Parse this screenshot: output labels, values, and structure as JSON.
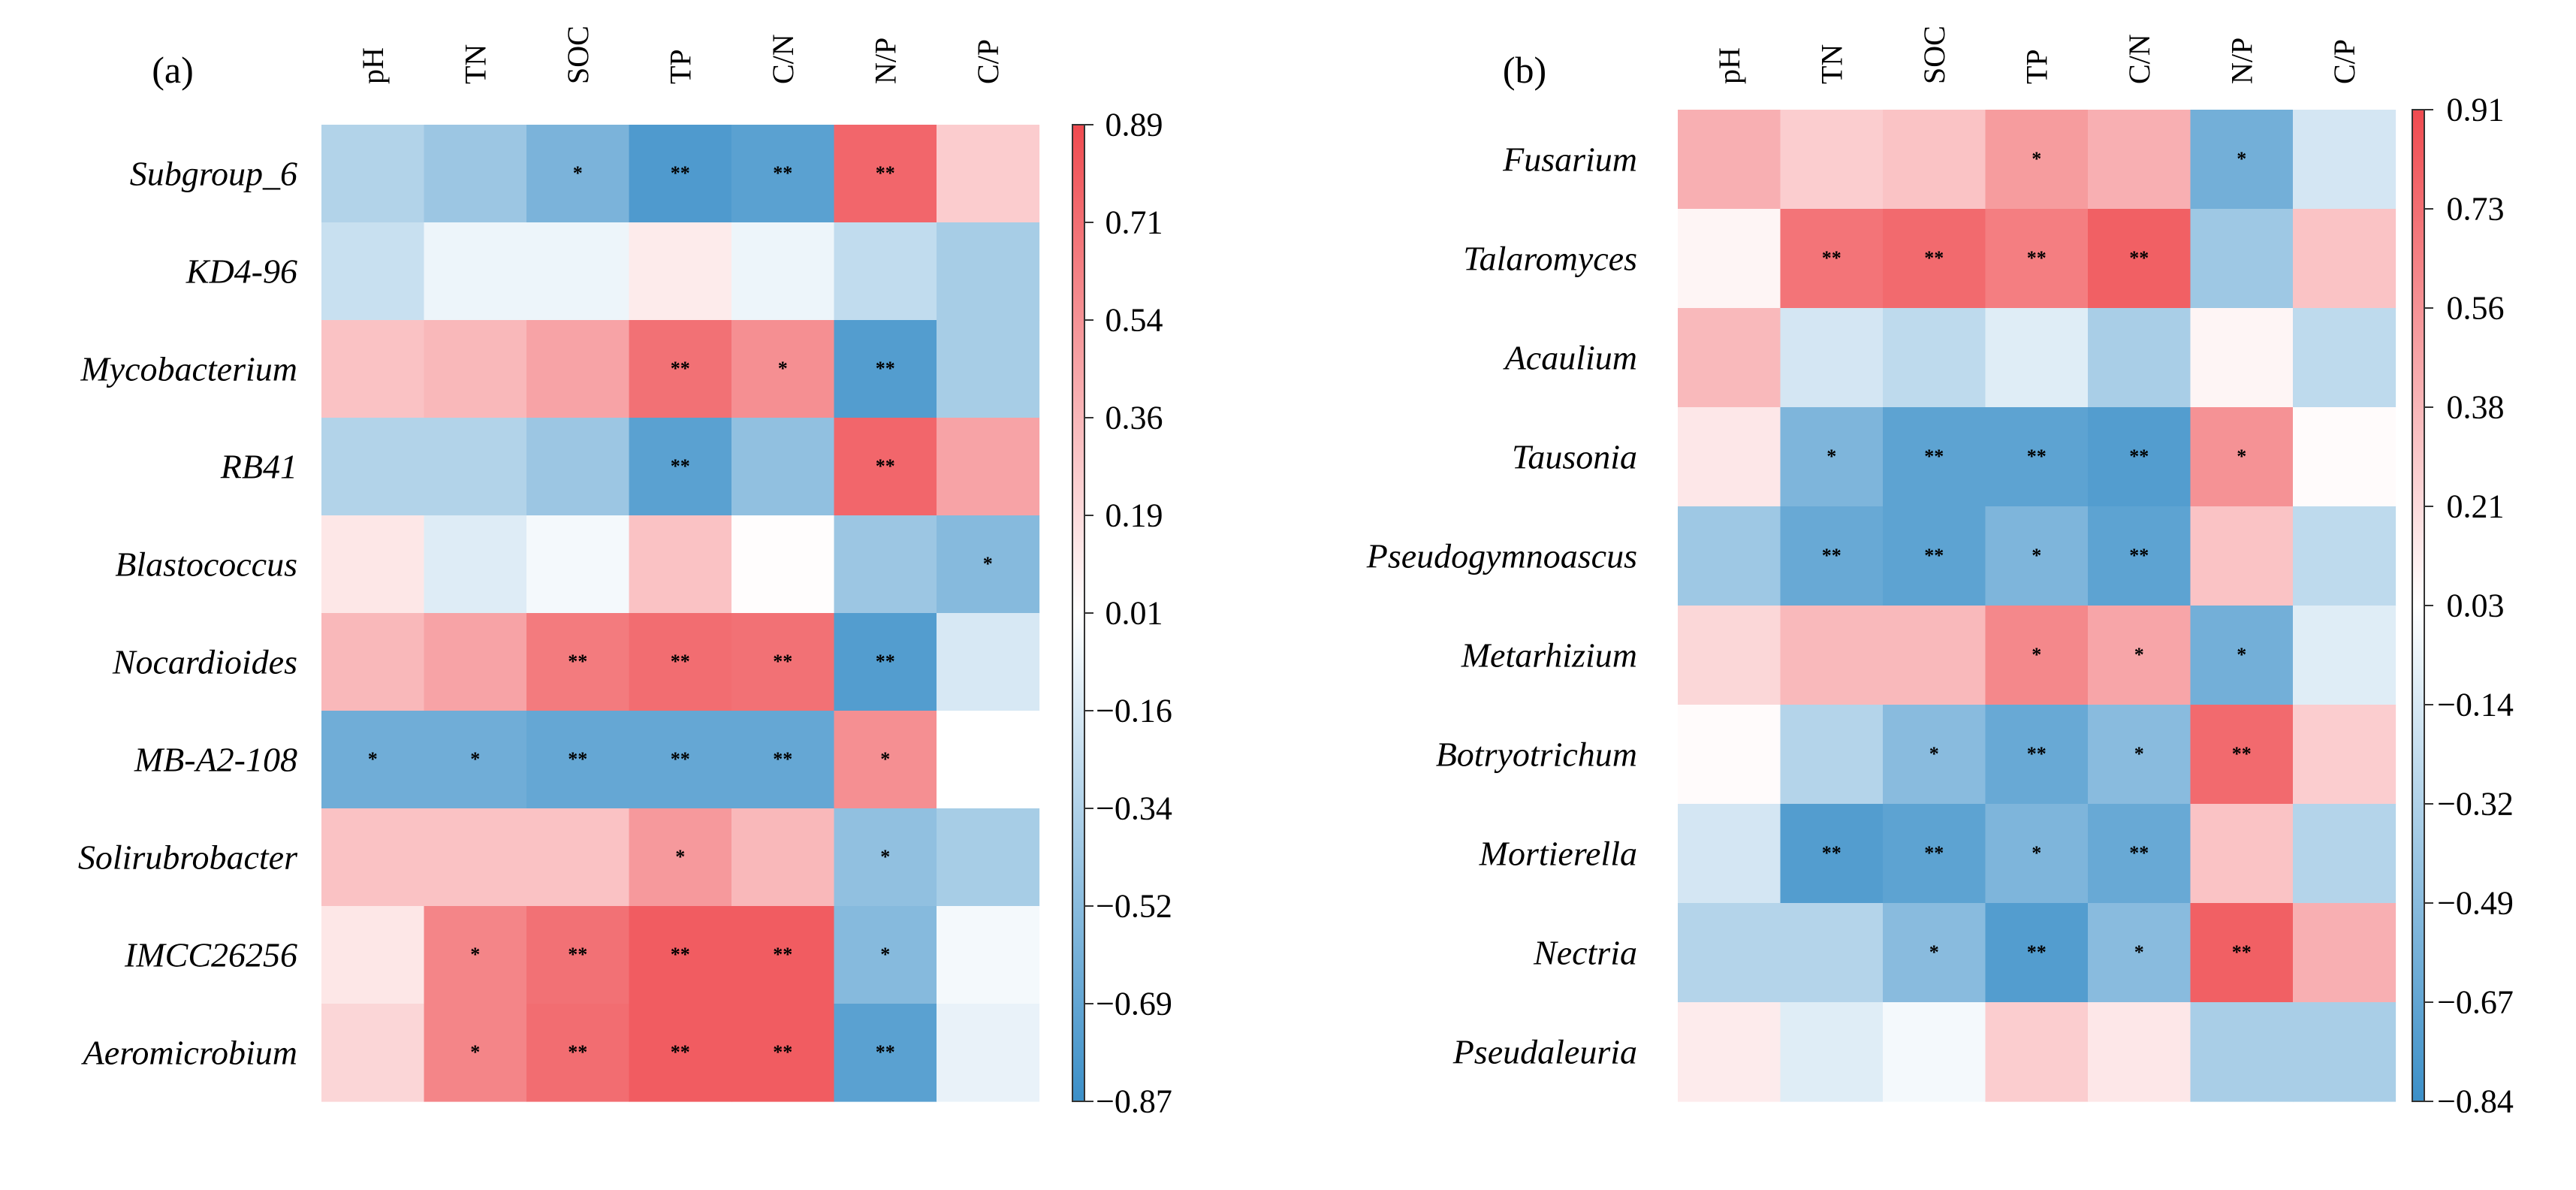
{
  "chart_data": [
    {
      "type": "heatmap",
      "panel_label": "(a)",
      "columns": [
        "pH",
        "TN",
        "SOC",
        "TP",
        "C/N",
        "N/P",
        "C/P"
      ],
      "rows": [
        "Subgroup_6",
        "KD4-96",
        "Mycobacterium",
        "RB41",
        "Blastococcus",
        "Nocardioides",
        "MB-A2-108",
        "Solirubrobacter",
        "IMCC26256",
        "Aeromicrobium"
      ],
      "values": [
        [
          -0.35,
          -0.45,
          -0.6,
          -0.8,
          -0.75,
          0.75,
          0.25
        ],
        [
          -0.25,
          -0.08,
          -0.08,
          0.1,
          -0.08,
          -0.28,
          -0.4
        ],
        [
          0.3,
          0.35,
          0.45,
          0.7,
          0.55,
          -0.78,
          -0.4
        ],
        [
          -0.35,
          -0.35,
          -0.45,
          -0.75,
          -0.5,
          0.75,
          0.45
        ],
        [
          0.12,
          -0.15,
          -0.05,
          0.3,
          0.01,
          -0.45,
          -0.55
        ],
        [
          0.35,
          0.45,
          0.65,
          0.72,
          0.7,
          -0.78,
          -0.18
        ],
        [
          -0.65,
          -0.65,
          -0.7,
          -0.7,
          -0.7,
          0.55,
          0.0
        ],
        [
          0.3,
          0.3,
          0.3,
          0.5,
          0.35,
          -0.5,
          -0.4
        ],
        [
          0.12,
          0.6,
          0.7,
          0.8,
          0.8,
          -0.55,
          -0.05
        ],
        [
          0.2,
          0.6,
          0.72,
          0.8,
          0.8,
          -0.75,
          -0.1
        ]
      ],
      "significance": [
        [
          "",
          "",
          "*",
          "**",
          "**",
          "**",
          ""
        ],
        [
          "",
          "",
          "",
          "",
          "",
          "",
          ""
        ],
        [
          "",
          "",
          "",
          "**",
          "*",
          "**",
          ""
        ],
        [
          "",
          "",
          "",
          "**",
          "",
          "**",
          ""
        ],
        [
          "",
          "",
          "",
          "",
          "",
          "",
          "*"
        ],
        [
          "",
          "",
          "**",
          "**",
          "**",
          "**",
          ""
        ],
        [
          "*",
          "*",
          "**",
          "**",
          "**",
          "*",
          ""
        ],
        [
          "",
          "",
          "",
          "*",
          "",
          "*",
          ""
        ],
        [
          "",
          "*",
          "**",
          "**",
          "**",
          "*",
          ""
        ],
        [
          "",
          "*",
          "**",
          "**",
          "**",
          "**",
          ""
        ]
      ],
      "colorbar": {
        "min": -0.87,
        "max": 0.89,
        "ticks": [
          "0.89",
          "0.71",
          "0.54",
          "0.36",
          "0.19",
          "0.01",
          "−0.16",
          "−0.34",
          "−0.52",
          "−0.69",
          "−0.87"
        ]
      }
    },
    {
      "type": "heatmap",
      "panel_label": "(b)",
      "columns": [
        "pH",
        "TN",
        "SOC",
        "TP",
        "C/N",
        "N/P",
        "C/P"
      ],
      "rows": [
        "Fusarium",
        "Talaromyces",
        "Acaulium",
        "Tausonia",
        "Pseudogymnoascus",
        "Metarhizium",
        "Botryotrichum",
        "Mortierella",
        "Nectria",
        "Pseudaleuria"
      ],
      "values": [
        [
          0.4,
          0.25,
          0.3,
          0.5,
          0.4,
          -0.65,
          -0.2
        ],
        [
          0.05,
          0.7,
          0.75,
          0.65,
          0.8,
          -0.45,
          0.3
        ],
        [
          0.35,
          -0.2,
          -0.3,
          -0.15,
          -0.4,
          0.05,
          -0.3
        ],
        [
          0.12,
          -0.6,
          -0.75,
          -0.75,
          -0.8,
          0.55,
          0.02
        ],
        [
          -0.45,
          -0.7,
          -0.75,
          -0.6,
          -0.75,
          0.3,
          -0.3
        ],
        [
          0.2,
          0.35,
          0.35,
          0.6,
          0.45,
          -0.65,
          -0.15
        ],
        [
          0.02,
          -0.35,
          -0.55,
          -0.7,
          -0.55,
          0.75,
          0.25
        ],
        [
          -0.2,
          -0.8,
          -0.75,
          -0.6,
          -0.7,
          0.3,
          -0.35
        ],
        [
          -0.35,
          -0.35,
          -0.55,
          -0.8,
          -0.55,
          0.8,
          0.4
        ],
        [
          0.1,
          -0.15,
          -0.05,
          0.25,
          0.12,
          -0.4,
          -0.4
        ]
      ],
      "significance": [
        [
          "",
          "",
          "",
          "*",
          "",
          "*",
          ""
        ],
        [
          "",
          "**",
          "**",
          "**",
          "**",
          "",
          ""
        ],
        [
          "",
          "",
          "",
          "",
          "",
          "",
          ""
        ],
        [
          "",
          "*",
          "**",
          "**",
          "**",
          "*",
          ""
        ],
        [
          "",
          "**",
          "**",
          "*",
          "**",
          "",
          ""
        ],
        [
          "",
          "",
          "",
          "*",
          "*",
          "*",
          ""
        ],
        [
          "",
          "",
          "*",
          "**",
          "*",
          "**",
          ""
        ],
        [
          "",
          "**",
          "**",
          "*",
          "**",
          "",
          ""
        ],
        [
          "",
          "",
          "*",
          "**",
          "*",
          "**",
          ""
        ],
        [
          "",
          "",
          "",
          "",
          "",
          "",
          ""
        ]
      ],
      "colorbar": {
        "min": -0.84,
        "max": 0.91,
        "ticks": [
          "0.91",
          "0.73",
          "0.56",
          "0.38",
          "0.21",
          "0.03",
          "−0.14",
          "−0.32",
          "−0.49",
          "−0.67",
          "−0.84"
        ]
      }
    }
  ],
  "colors": {
    "negative": "#3b8fc8",
    "neutral": "#ffffff",
    "positive": "#ef4a4f"
  }
}
